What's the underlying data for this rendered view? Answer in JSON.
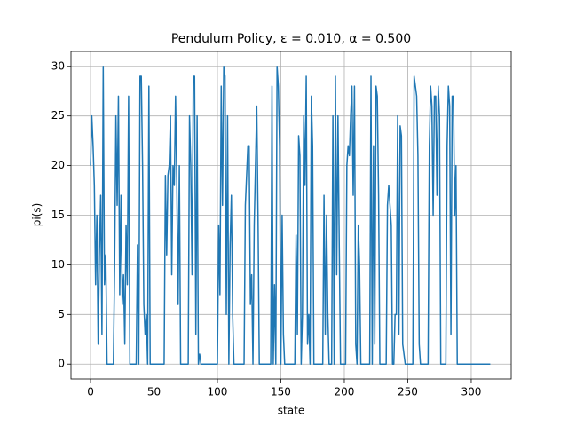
{
  "chart_data": {
    "type": "line",
    "title": "Pendulum Policy, ε = 0.010, α = 0.500",
    "x_label": "state",
    "y_label": "pi(s)",
    "x": [
      0,
      1,
      2,
      3,
      4,
      5,
      6,
      7,
      8,
      9,
      10,
      11,
      12,
      13,
      14,
      15,
      16,
      17,
      18,
      19,
      20,
      21,
      22,
      23,
      24,
      25,
      26,
      27,
      28,
      29,
      30,
      31,
      32,
      33,
      34,
      35,
      36,
      37,
      38,
      39,
      40,
      41,
      42,
      43,
      44,
      45,
      46,
      47,
      48,
      49,
      50,
      51,
      52,
      53,
      54,
      55,
      56,
      57,
      58,
      59,
      60,
      61,
      62,
      63,
      64,
      65,
      66,
      67,
      68,
      69,
      70,
      71,
      72,
      73,
      74,
      75,
      76,
      77,
      78,
      79,
      80,
      81,
      82,
      83,
      84,
      85,
      86,
      87,
      88,
      89,
      90,
      91,
      92,
      93,
      94,
      95,
      96,
      97,
      98,
      99,
      100,
      101,
      102,
      103,
      104,
      105,
      106,
      107,
      108,
      109,
      110,
      111,
      112,
      113,
      114,
      115,
      116,
      117,
      118,
      119,
      120,
      121,
      122,
      123,
      124,
      125,
      126,
      127,
      128,
      129,
      130,
      131,
      132,
      133,
      134,
      135,
      136,
      137,
      138,
      139,
      140,
      141,
      142,
      143,
      144,
      145,
      146,
      147,
      148,
      149,
      150,
      151,
      152,
      153,
      154,
      155,
      156,
      157,
      158,
      159,
      160,
      161,
      162,
      163,
      164,
      165,
      166,
      167,
      168,
      169,
      170,
      171,
      172,
      173,
      174,
      175,
      176,
      177,
      178,
      179,
      180,
      181,
      182,
      183,
      184,
      185,
      186,
      187,
      188,
      189,
      190,
      191,
      192,
      193,
      194,
      195,
      196,
      197,
      198,
      199,
      200,
      201,
      202,
      203,
      204,
      205,
      206,
      207,
      208,
      209,
      210,
      211,
      212,
      213,
      214,
      215,
      216,
      217,
      218,
      219,
      220,
      221,
      222,
      223,
      224,
      225,
      226,
      227,
      228,
      229,
      230,
      231,
      232,
      233,
      234,
      235,
      236,
      237,
      238,
      239,
      240,
      241,
      242,
      243,
      244,
      245,
      246,
      247,
      248,
      249,
      250,
      251,
      252,
      253,
      254,
      255,
      256,
      257,
      258,
      259,
      260,
      261,
      262,
      263,
      264,
      265,
      266,
      267,
      268,
      269,
      270,
      271,
      272,
      273,
      274,
      275,
      276,
      277,
      278,
      279,
      280,
      281,
      282,
      283,
      284,
      285,
      286,
      287,
      288,
      289,
      290,
      291,
      292,
      293,
      294,
      295,
      296,
      297,
      298,
      299,
      300,
      301,
      302,
      303,
      304,
      305,
      306,
      307,
      308,
      309,
      310,
      311,
      312,
      313,
      314,
      315
    ],
    "series": [
      {
        "color": "#1f77b4",
        "values": [
          20,
          25,
          22,
          18,
          8,
          15,
          2,
          11,
          17,
          3,
          30,
          8,
          11,
          0,
          0,
          0,
          0,
          0,
          0,
          10,
          25,
          16,
          27,
          7,
          17,
          6,
          9,
          2,
          14,
          8,
          27,
          0,
          0,
          0,
          0,
          0,
          0,
          12,
          0,
          29,
          29,
          20,
          6,
          3,
          5,
          0,
          28,
          0,
          0,
          0,
          0,
          0,
          0,
          0,
          0,
          0,
          0,
          0,
          0,
          19,
          11,
          19,
          20,
          25,
          9,
          20,
          18,
          27,
          18,
          6,
          20,
          0,
          0,
          0,
          0,
          0,
          0,
          0,
          25,
          20,
          9,
          29,
          29,
          3,
          25,
          0,
          1,
          0,
          0,
          0,
          0,
          0,
          0,
          0,
          0,
          0,
          0,
          0,
          0,
          0,
          0,
          14,
          7,
          28,
          16,
          30,
          29,
          5,
          25,
          0,
          12,
          17,
          5,
          0,
          0,
          0,
          0,
          0,
          0,
          0,
          0,
          0,
          16,
          19,
          22,
          22,
          6,
          9,
          0,
          14,
          20,
          26,
          15,
          0,
          0,
          0,
          0,
          0,
          0,
          0,
          0,
          0,
          0,
          28,
          0,
          8,
          0,
          30,
          28,
          22,
          0,
          15,
          3,
          0,
          0,
          0,
          0,
          0,
          0,
          0,
          0,
          0,
          13,
          3,
          23,
          21,
          0,
          5,
          25,
          18,
          29,
          2,
          5,
          0,
          27,
          22,
          0,
          0,
          0,
          0,
          0,
          0,
          0,
          0,
          17,
          3,
          15,
          5,
          0,
          0,
          0,
          25,
          0,
          29,
          9,
          25,
          12,
          0,
          0,
          0,
          0,
          0,
          20,
          22,
          21,
          25,
          28,
          17,
          28,
          2,
          0,
          14,
          10,
          0,
          0,
          0,
          0,
          0,
          0,
          0,
          0,
          29,
          0,
          22,
          2,
          28,
          27,
          17,
          0,
          0,
          0,
          0,
          0,
          0,
          16,
          18,
          16,
          14,
          0,
          0,
          5,
          5,
          25,
          3,
          24,
          23,
          2,
          1,
          0,
          0,
          0,
          0,
          0,
          0,
          0,
          29,
          28,
          27,
          21,
          2,
          0,
          0,
          0,
          0,
          0,
          0,
          0,
          22,
          28,
          26,
          15,
          27,
          27,
          17,
          28,
          25,
          0,
          0,
          0,
          0,
          0,
          22,
          28,
          26,
          3,
          27,
          27,
          15,
          20,
          0,
          0,
          0,
          0,
          0,
          0,
          0,
          0,
          0,
          0,
          0,
          0,
          0,
          0,
          0,
          0,
          0,
          0,
          0,
          0,
          0,
          0,
          0,
          0,
          0,
          0,
          0
        ]
      }
    ],
    "xlim": [
      -15.4,
      331.5
    ],
    "ylim": [
      -1.5,
      31.5
    ],
    "xticks": [
      0,
      50,
      100,
      150,
      200,
      250,
      300
    ],
    "yticks": [
      0,
      5,
      10,
      15,
      20,
      25,
      30
    ],
    "grid": true
  }
}
